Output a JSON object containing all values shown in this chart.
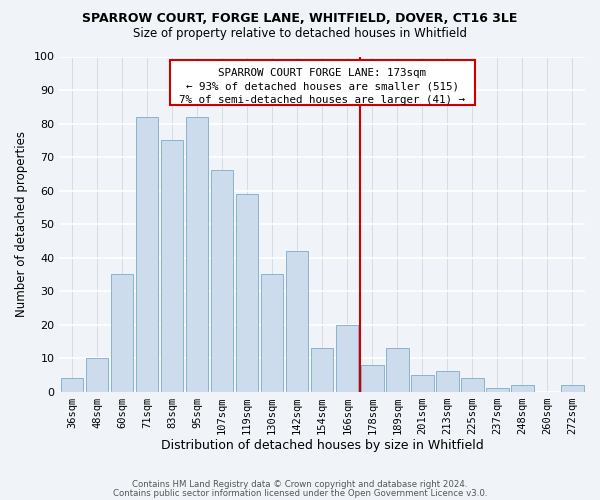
{
  "title": "SPARROW COURT, FORGE LANE, WHITFIELD, DOVER, CT16 3LE",
  "subtitle": "Size of property relative to detached houses in Whitfield",
  "xlabel": "Distribution of detached houses by size in Whitfield",
  "ylabel": "Number of detached properties",
  "bar_labels": [
    "36sqm",
    "48sqm",
    "60sqm",
    "71sqm",
    "83sqm",
    "95sqm",
    "107sqm",
    "119sqm",
    "130sqm",
    "142sqm",
    "154sqm",
    "166sqm",
    "178sqm",
    "189sqm",
    "201sqm",
    "213sqm",
    "225sqm",
    "237sqm",
    "248sqm",
    "260sqm",
    "272sqm"
  ],
  "bar_values": [
    4,
    10,
    35,
    82,
    75,
    82,
    66,
    59,
    35,
    42,
    13,
    20,
    8,
    13,
    5,
    6,
    4,
    1,
    2,
    0,
    2
  ],
  "bar_color": "#ccdcec",
  "bar_edge_color": "#8ab4cc",
  "vline_color": "#cc0000",
  "ylim": [
    0,
    100
  ],
  "yticks": [
    0,
    10,
    20,
    30,
    40,
    50,
    60,
    70,
    80,
    90,
    100
  ],
  "annotation_title": "SPARROW COURT FORGE LANE: 173sqm",
  "annotation_line1": "← 93% of detached houses are smaller (515)",
  "annotation_line2": "7% of semi-detached houses are larger (41) →",
  "footer1": "Contains HM Land Registry data © Crown copyright and database right 2024.",
  "footer2": "Contains public sector information licensed under the Open Government Licence v3.0.",
  "bg_color": "#f0f4f8",
  "grid_color": "#d0d8e0"
}
